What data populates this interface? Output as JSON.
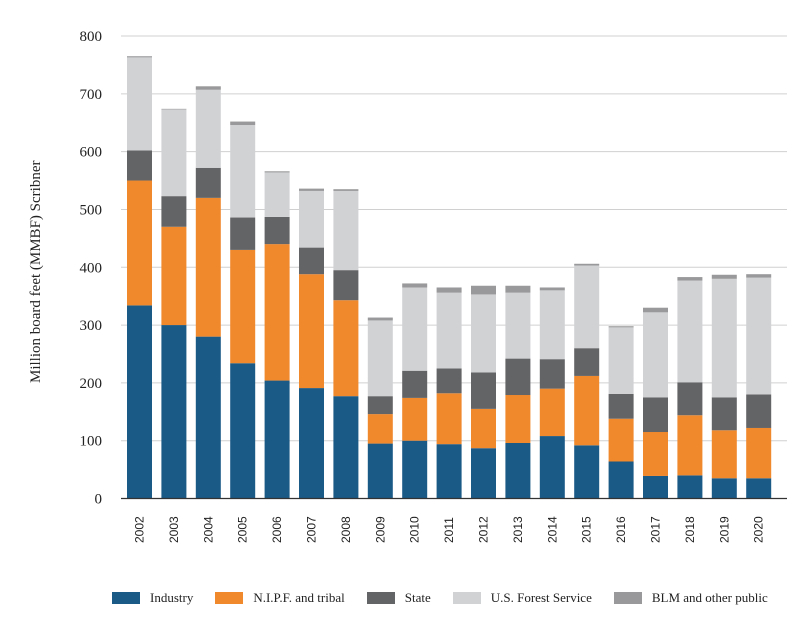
{
  "chart_data": {
    "type": "bar",
    "stacked": true,
    "title": "",
    "xlabel": "",
    "ylabel": "Million board feet (MMBF) Scribner",
    "ylim": [
      0,
      800
    ],
    "yticks": [
      0,
      100,
      200,
      300,
      400,
      500,
      600,
      700,
      800
    ],
    "grid": true,
    "legend_position": "bottom",
    "categories": [
      "2002",
      "2003",
      "2004",
      "2005",
      "2006",
      "2007",
      "2008",
      "2009",
      "2010",
      "2011",
      "2012",
      "2013",
      "2014",
      "2015",
      "2016",
      "2017",
      "2018",
      "2019",
      "2020"
    ],
    "series": [
      {
        "name": "Industry",
        "color": "#1a5a86",
        "values": [
          334,
          300,
          280,
          234,
          204,
          191,
          177,
          95,
          100,
          94,
          87,
          96,
          108,
          92,
          64,
          39,
          40,
          35,
          35
        ]
      },
      {
        "name": "N.I.P.F. and tribal",
        "color": "#f0882c",
        "values": [
          216,
          170,
          240,
          196,
          236,
          197,
          166,
          51,
          74,
          88,
          68,
          83,
          82,
          120,
          74,
          76,
          104,
          83,
          87
        ]
      },
      {
        "name": "State",
        "color": "#636466",
        "values": [
          52,
          53,
          52,
          56,
          47,
          46,
          52,
          31,
          47,
          43,
          63,
          63,
          51,
          48,
          43,
          60,
          57,
          57,
          58
        ]
      },
      {
        "name": "U.S. Forest Service",
        "color": "#d1d2d4",
        "values": [
          161,
          150,
          135,
          160,
          77,
          98,
          137,
          131,
          144,
          131,
          135,
          114,
          119,
          143,
          115,
          147,
          176,
          205,
          202
        ]
      },
      {
        "name": "BLM and other public",
        "color": "#99999b",
        "values": [
          2,
          1,
          6,
          6,
          2,
          4,
          3,
          5,
          7,
          9,
          15,
          12,
          5,
          3,
          2,
          8,
          6,
          7,
          6
        ]
      }
    ]
  }
}
